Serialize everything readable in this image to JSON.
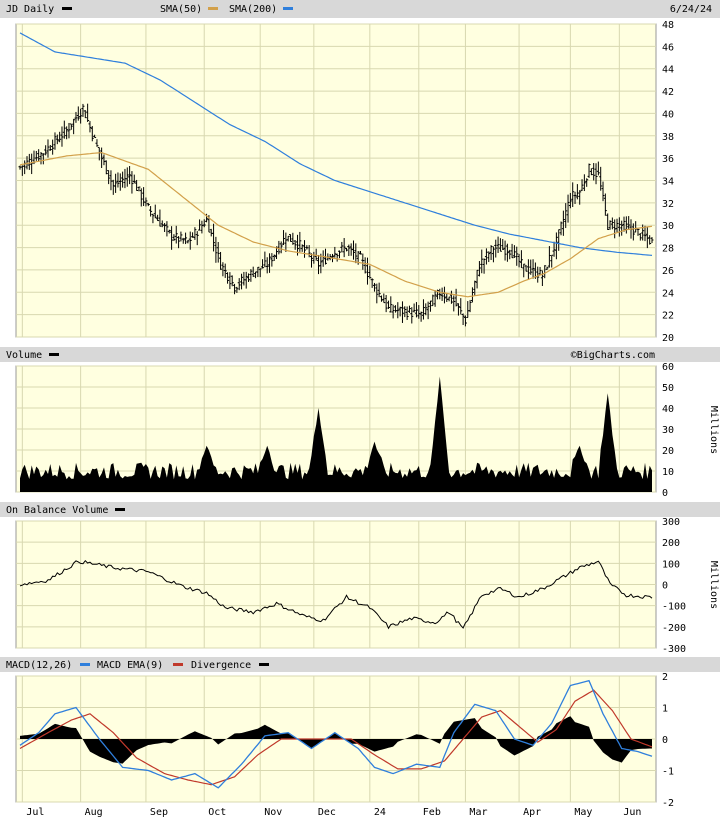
{
  "header": {
    "symbol_label": "JD Daily",
    "sma50_label": "SMA(50)",
    "sma200_label": "SMA(200)",
    "date": "6/24/24"
  },
  "volume_panel": {
    "label": "Volume",
    "watermark": "©BigCharts.com",
    "unit": "Millions"
  },
  "obv_panel": {
    "label": "On Balance Volume",
    "unit": "Millions"
  },
  "macd_panel": {
    "label": "MACD(12,26)",
    "ema_label": "MACD EMA(9)",
    "divergence_label": "Divergence"
  },
  "colors": {
    "plot_bg": "#ffffe0",
    "grid": "#d8d8b0",
    "header_bg": "#d8d8d8",
    "sma50": "#d2a04a",
    "sma200": "#2f7fdc",
    "macd": "#2f7fdc",
    "ema": "#c0392b",
    "price": "#000000"
  },
  "chart_data": [
    {
      "type": "ohlc",
      "title": "JD Daily",
      "x_labels": [
        "Jul",
        "Aug",
        "Sep",
        "Oct",
        "Nov",
        "Dec",
        "24",
        "Feb",
        "Mar",
        "Apr",
        "May",
        "Jun"
      ],
      "x_positions": [
        1,
        26,
        54,
        79,
        103,
        126,
        150,
        171,
        191,
        214,
        236,
        257
      ],
      "y_ticks": [
        20,
        22,
        24,
        26,
        28,
        30,
        32,
        34,
        36,
        38,
        40,
        42,
        44,
        46,
        48
      ],
      "ylim": [
        20,
        48
      ],
      "bars": 272,
      "close_anchors": [
        [
          0,
          35.2
        ],
        [
          10,
          36.5
        ],
        [
          20,
          38.5
        ],
        [
          27,
          40.5
        ],
        [
          33,
          37.0
        ],
        [
          40,
          33.5
        ],
        [
          47,
          34.5
        ],
        [
          55,
          31.5
        ],
        [
          65,
          29.0
        ],
        [
          72,
          28.5
        ],
        [
          80,
          30.5
        ],
        [
          86,
          26.5
        ],
        [
          92,
          24.5
        ],
        [
          100,
          25.8
        ],
        [
          106,
          26.5
        ],
        [
          114,
          29.0
        ],
        [
          120,
          28.2
        ],
        [
          128,
          26.5
        ],
        [
          134,
          27.5
        ],
        [
          140,
          28.0
        ],
        [
          146,
          27.0
        ],
        [
          152,
          24.5
        ],
        [
          158,
          22.5
        ],
        [
          165,
          22.3
        ],
        [
          172,
          22.0
        ],
        [
          180,
          24.0
        ],
        [
          186,
          23.2
        ],
        [
          191,
          21.5
        ],
        [
          197,
          26.5
        ],
        [
          203,
          28.0
        ],
        [
          210,
          27.8
        ],
        [
          216,
          26.2
        ],
        [
          224,
          25.5
        ],
        [
          230,
          28.5
        ],
        [
          236,
          32.5
        ],
        [
          240,
          33.0
        ],
        [
          244,
          35.0
        ],
        [
          248,
          34.5
        ],
        [
          252,
          30.0
        ],
        [
          258,
          30.0
        ],
        [
          264,
          29.5
        ],
        [
          271,
          28.5
        ]
      ],
      "sma50_anchors": [
        [
          0,
          35.4
        ],
        [
          20,
          36.2
        ],
        [
          35,
          36.5
        ],
        [
          55,
          35.0
        ],
        [
          70,
          32.5
        ],
        [
          85,
          30.0
        ],
        [
          100,
          28.5
        ],
        [
          115,
          27.7
        ],
        [
          130,
          27.2
        ],
        [
          150,
          26.5
        ],
        [
          165,
          25.0
        ],
        [
          180,
          24.0
        ],
        [
          192,
          23.6
        ],
        [
          205,
          24.0
        ],
        [
          216,
          25.0
        ],
        [
          225,
          25.7
        ],
        [
          236,
          27.0
        ],
        [
          248,
          28.8
        ],
        [
          260,
          29.6
        ],
        [
          271,
          29.9
        ]
      ],
      "sma200_anchors": [
        [
          0,
          47.2
        ],
        [
          15,
          45.5
        ],
        [
          30,
          45.0
        ],
        [
          45,
          44.5
        ],
        [
          60,
          43.0
        ],
        [
          75,
          41.0
        ],
        [
          90,
          39.0
        ],
        [
          105,
          37.5
        ],
        [
          120,
          35.5
        ],
        [
          135,
          34.0
        ],
        [
          150,
          33.0
        ],
        [
          165,
          32.0
        ],
        [
          180,
          31.0
        ],
        [
          195,
          30.0
        ],
        [
          210,
          29.2
        ],
        [
          225,
          28.6
        ],
        [
          240,
          28.0
        ],
        [
          255,
          27.6
        ],
        [
          271,
          27.3
        ]
      ]
    },
    {
      "type": "bar",
      "title": "Volume",
      "ylabel": "Millions",
      "y_ticks": [
        0,
        10,
        20,
        30,
        40,
        50,
        60
      ],
      "ylim": [
        0,
        60
      ],
      "base_level": 10,
      "spikes": [
        [
          80,
          22
        ],
        [
          106,
          22
        ],
        [
          128,
          40
        ],
        [
          152,
          24
        ],
        [
          180,
          55
        ],
        [
          240,
          22
        ],
        [
          252,
          47
        ]
      ]
    },
    {
      "type": "line",
      "title": "On Balance Volume",
      "ylabel": "Millions",
      "y_ticks": [
        300,
        200,
        100,
        0,
        -100,
        -200,
        -300
      ],
      "ylim": [
        -300,
        300
      ],
      "anchors": [
        [
          0,
          0
        ],
        [
          12,
          20
        ],
        [
          25,
          110
        ],
        [
          40,
          80
        ],
        [
          55,
          60
        ],
        [
          70,
          -10
        ],
        [
          80,
          -40
        ],
        [
          88,
          -110
        ],
        [
          100,
          -130
        ],
        [
          110,
          -90
        ],
        [
          122,
          -150
        ],
        [
          130,
          -170
        ],
        [
          140,
          -60
        ],
        [
          150,
          -110
        ],
        [
          158,
          -200
        ],
        [
          168,
          -160
        ],
        [
          178,
          -180
        ],
        [
          184,
          -130
        ],
        [
          190,
          -210
        ],
        [
          198,
          -50
        ],
        [
          206,
          -20
        ],
        [
          214,
          -60
        ],
        [
          224,
          -20
        ],
        [
          232,
          30
        ],
        [
          240,
          80
        ],
        [
          248,
          110
        ],
        [
          253,
          0
        ],
        [
          260,
          -50
        ],
        [
          271,
          -60
        ]
      ]
    },
    {
      "type": "line",
      "title": "MACD(12,26)",
      "y_ticks": [
        2,
        1,
        0,
        -1,
        -2
      ],
      "ylim": [
        -2,
        2
      ],
      "macd_anchors": [
        [
          0,
          -0.2
        ],
        [
          8,
          0.2
        ],
        [
          15,
          0.8
        ],
        [
          24,
          1.0
        ],
        [
          34,
          0.0
        ],
        [
          44,
          -0.9
        ],
        [
          55,
          -1.0
        ],
        [
          65,
          -1.3
        ],
        [
          75,
          -1.1
        ],
        [
          85,
          -1.55
        ],
        [
          95,
          -0.8
        ],
        [
          105,
          0.1
        ],
        [
          115,
          0.2
        ],
        [
          125,
          -0.3
        ],
        [
          135,
          0.2
        ],
        [
          145,
          -0.3
        ],
        [
          152,
          -0.9
        ],
        [
          160,
          -1.1
        ],
        [
          170,
          -0.8
        ],
        [
          180,
          -0.9
        ],
        [
          186,
          0.2
        ],
        [
          195,
          1.1
        ],
        [
          204,
          0.9
        ],
        [
          212,
          0.0
        ],
        [
          220,
          -0.2
        ],
        [
          228,
          0.5
        ],
        [
          236,
          1.7
        ],
        [
          244,
          1.85
        ],
        [
          250,
          0.8
        ],
        [
          258,
          -0.3
        ],
        [
          265,
          -0.4
        ],
        [
          271,
          -0.55
        ]
      ],
      "ema_anchors": [
        [
          0,
          -0.3
        ],
        [
          12,
          0.2
        ],
        [
          22,
          0.6
        ],
        [
          30,
          0.8
        ],
        [
          40,
          0.2
        ],
        [
          50,
          -0.6
        ],
        [
          62,
          -1.1
        ],
        [
          72,
          -1.3
        ],
        [
          82,
          -1.45
        ],
        [
          92,
          -1.2
        ],
        [
          102,
          -0.5
        ],
        [
          112,
          0.0
        ],
        [
          122,
          0.0
        ],
        [
          132,
          0.0
        ],
        [
          142,
          0.0
        ],
        [
          152,
          -0.5
        ],
        [
          162,
          -0.95
        ],
        [
          172,
          -0.95
        ],
        [
          182,
          -0.7
        ],
        [
          190,
          0.0
        ],
        [
          198,
          0.7
        ],
        [
          206,
          0.9
        ],
        [
          214,
          0.4
        ],
        [
          222,
          -0.1
        ],
        [
          230,
          0.3
        ],
        [
          238,
          1.2
        ],
        [
          246,
          1.55
        ],
        [
          254,
          0.9
        ],
        [
          262,
          0.0
        ],
        [
          271,
          -0.25
        ]
      ]
    }
  ]
}
